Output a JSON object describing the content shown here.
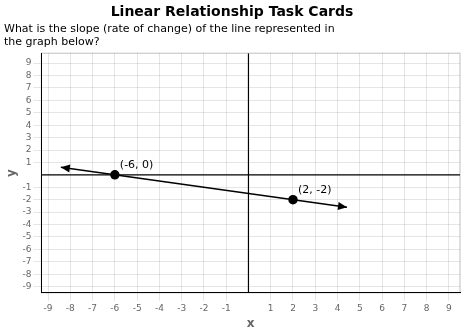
{
  "chart_data": {
    "type": "scatter",
    "title": "Linear Relationship Task Cards",
    "subtitle": [
      "What is the slope (rate of change) of the line represented in",
      "the graph below?"
    ],
    "x_label": "x",
    "y_label": "y",
    "xlim": [
      -9.3,
      9.5
    ],
    "ylim": [
      -9.5,
      9.8
    ],
    "xticks": [
      -9,
      -8,
      -7,
      -6,
      -5,
      -4,
      -3,
      -2,
      -1,
      1,
      2,
      3,
      4,
      5,
      6,
      7,
      8,
      9
    ],
    "yticks": [
      -9,
      -8,
      -7,
      -6,
      -5,
      -4,
      -3,
      -2,
      -1,
      1,
      2,
      3,
      4,
      5,
      6,
      7,
      8,
      9
    ],
    "grid": true,
    "data_labels": true,
    "series": [
      {
        "type": "line",
        "color": "#000000",
        "marker": "none",
        "line_style": "solid",
        "x": [
          -8.4254,
          4.4254
        ],
        "values": [
          0.6063,
          -2.6063
        ]
      },
      {
        "type": "scatter",
        "color": "#000000",
        "marker": "o",
        "x": [
          -6,
          2
        ],
        "values": [
          0,
          -2
        ],
        "value_labels": [
          "(-6, 0)",
          "(2, -2)"
        ]
      }
    ]
  }
}
